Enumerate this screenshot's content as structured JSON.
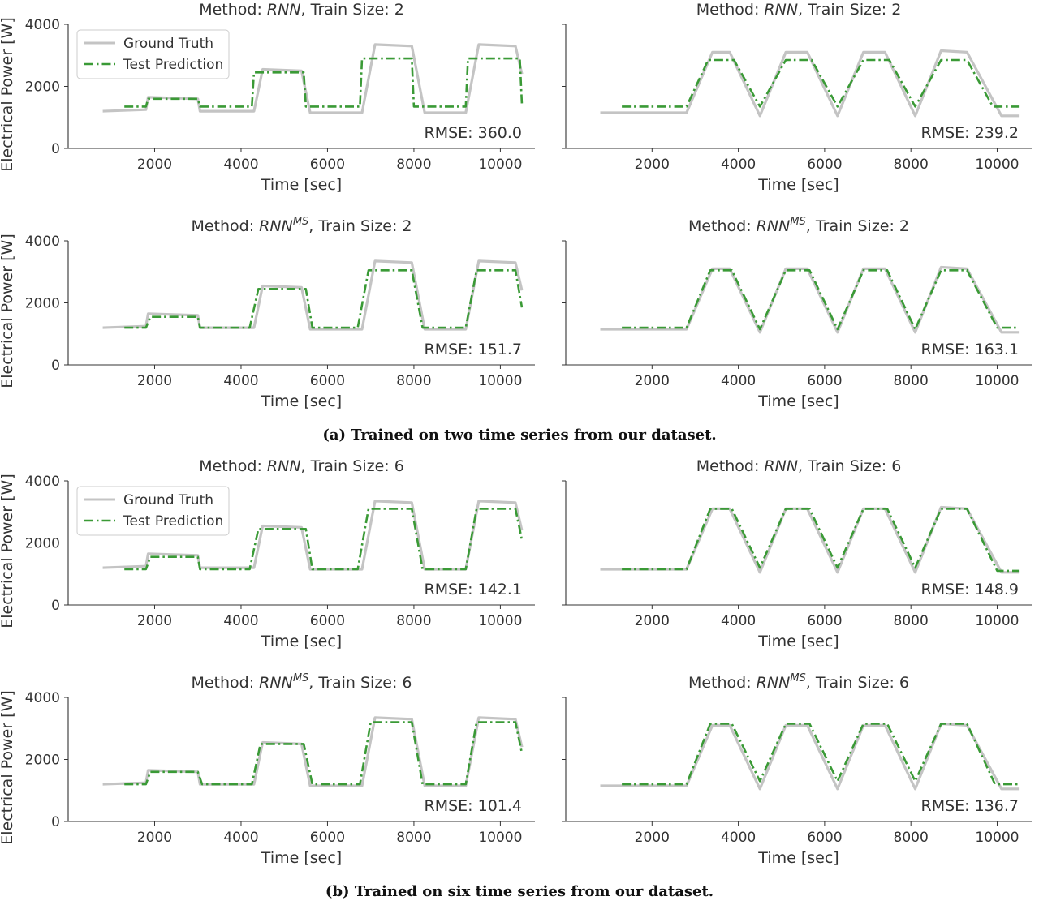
{
  "captions": {
    "a": "(a) Trained on two time series from our dataset.",
    "b": "(b) Trained on six time series from our dataset."
  },
  "colors": {
    "ground_truth": "#c4c4c4",
    "prediction": "#3a9a36",
    "axis": "#333333"
  },
  "axes_common": {
    "xlabel": "Time [sec]",
    "ylabel": "Electrical Power [W]",
    "xticks": [
      2000,
      4000,
      6000,
      8000,
      10000
    ],
    "yticks": [
      0,
      2000,
      4000
    ],
    "xlim": [
      0,
      10800
    ],
    "ylim": [
      0,
      4000
    ]
  },
  "legend": {
    "ground_truth": "Ground Truth",
    "prediction": "Test Prediction",
    "location": "upper-left"
  },
  "chart_data": [
    {
      "type": "line",
      "panel": "a-top-left",
      "title_prefix": "Method: ",
      "method": "RNN",
      "superscript": "",
      "title_suffix": ", Train Size: 2",
      "rmse": "RMSE: 360.0",
      "show_legend": true,
      "show_ylabels": true,
      "series": [
        {
          "name": "Ground Truth",
          "x": [
            800,
            1800,
            1850,
            3000,
            3050,
            4300,
            4500,
            5400,
            5600,
            6800,
            7100,
            7950,
            8250,
            9200,
            9500,
            10350,
            10500
          ],
          "y": [
            1200,
            1250,
            1650,
            1600,
            1200,
            1200,
            2550,
            2500,
            1150,
            1150,
            3350,
            3300,
            1150,
            1150,
            3350,
            3300,
            2400
          ]
        },
        {
          "name": "Test Prediction",
          "x": [
            1300,
            1800,
            1850,
            3000,
            3050,
            4250,
            4300,
            5450,
            5500,
            6750,
            6800,
            7950,
            8000,
            9200,
            9250,
            10450,
            10500
          ],
          "y": [
            1350,
            1350,
            1600,
            1600,
            1350,
            1350,
            2450,
            2450,
            1350,
            1350,
            2900,
            2900,
            1350,
            1350,
            2900,
            2900,
            1400
          ]
        }
      ]
    },
    {
      "type": "line",
      "panel": "a-top-right",
      "title_prefix": "Method: ",
      "method": "RNN",
      "superscript": "",
      "title_suffix": ", Train Size: 2",
      "rmse": "RMSE: 239.2",
      "show_legend": false,
      "show_ylabels": false,
      "series": [
        {
          "name": "Ground Truth",
          "x": [
            800,
            2800,
            3400,
            3800,
            4500,
            5100,
            5600,
            6300,
            6900,
            7400,
            8100,
            8700,
            9300,
            10100,
            10500
          ],
          "y": [
            1150,
            1150,
            3100,
            3100,
            1050,
            3100,
            3100,
            1050,
            3100,
            3100,
            1050,
            3150,
            3100,
            1050,
            1050
          ]
        },
        {
          "name": "Test Prediction",
          "x": [
            1300,
            2800,
            3300,
            3900,
            4500,
            5100,
            5700,
            6300,
            6900,
            7500,
            8100,
            8700,
            9300,
            9900,
            10500
          ],
          "y": [
            1350,
            1350,
            2850,
            2850,
            1350,
            2850,
            2850,
            1350,
            2850,
            2850,
            1350,
            2850,
            2850,
            1350,
            1350
          ]
        }
      ]
    },
    {
      "type": "line",
      "panel": "a-bottom-left",
      "title_prefix": "Method: ",
      "method": "RNN",
      "superscript": "MS",
      "title_suffix": ", Train Size: 2",
      "rmse": "RMSE: 151.7",
      "show_legend": false,
      "show_ylabels": true,
      "series": [
        {
          "name": "Ground Truth",
          "x": [
            800,
            1800,
            1850,
            3000,
            3050,
            4300,
            4500,
            5400,
            5600,
            6800,
            7100,
            7950,
            8250,
            9200,
            9500,
            10350,
            10500
          ],
          "y": [
            1200,
            1250,
            1650,
            1600,
            1200,
            1200,
            2550,
            2500,
            1150,
            1150,
            3350,
            3300,
            1150,
            1150,
            3350,
            3300,
            2400
          ]
        },
        {
          "name": "Test Prediction",
          "x": [
            1300,
            1800,
            1900,
            3000,
            3050,
            4200,
            4400,
            5500,
            5650,
            6700,
            6950,
            7950,
            8200,
            9200,
            9450,
            10350,
            10500
          ],
          "y": [
            1200,
            1200,
            1550,
            1550,
            1200,
            1200,
            2450,
            2450,
            1200,
            1200,
            3050,
            3050,
            1200,
            1200,
            3050,
            3050,
            1850
          ]
        }
      ]
    },
    {
      "type": "line",
      "panel": "a-bottom-right",
      "title_prefix": "Method: ",
      "method": "RNN",
      "superscript": "MS",
      "title_suffix": ", Train Size: 2",
      "rmse": "RMSE: 163.1",
      "show_legend": false,
      "show_ylabels": false,
      "series": [
        {
          "name": "Ground Truth",
          "x": [
            800,
            2800,
            3400,
            3800,
            4500,
            5100,
            5600,
            6300,
            6900,
            7400,
            8100,
            8700,
            9300,
            10100,
            10500
          ],
          "y": [
            1150,
            1150,
            3100,
            3100,
            1050,
            3100,
            3100,
            1050,
            3100,
            3100,
            1050,
            3150,
            3100,
            1050,
            1050
          ]
        },
        {
          "name": "Test Prediction",
          "x": [
            1300,
            2800,
            3350,
            3850,
            4500,
            5100,
            5650,
            6300,
            6900,
            7450,
            8100,
            8700,
            9300,
            10000,
            10500
          ],
          "y": [
            1200,
            1200,
            3050,
            3050,
            1150,
            3050,
            3050,
            1150,
            3050,
            3050,
            1150,
            3050,
            3050,
            1200,
            1200
          ]
        }
      ]
    },
    {
      "type": "line",
      "panel": "b-top-left",
      "title_prefix": "Method: ",
      "method": "RNN",
      "superscript": "",
      "title_suffix": ", Train Size: 6",
      "rmse": "RMSE: 142.1",
      "show_legend": true,
      "show_ylabels": true,
      "series": [
        {
          "name": "Ground Truth",
          "x": [
            800,
            1800,
            1850,
            3000,
            3050,
            4300,
            4500,
            5400,
            5600,
            6800,
            7100,
            7950,
            8250,
            9200,
            9500,
            10350,
            10500
          ],
          "y": [
            1200,
            1250,
            1650,
            1600,
            1200,
            1200,
            2550,
            2500,
            1150,
            1150,
            3350,
            3300,
            1150,
            1150,
            3350,
            3300,
            2400
          ]
        },
        {
          "name": "Test Prediction",
          "x": [
            1300,
            1800,
            1900,
            3000,
            3050,
            4200,
            4400,
            5500,
            5650,
            6700,
            6950,
            7950,
            8200,
            9200,
            9450,
            10350,
            10500
          ],
          "y": [
            1150,
            1150,
            1550,
            1550,
            1150,
            1150,
            2450,
            2450,
            1150,
            1150,
            3100,
            3100,
            1150,
            1150,
            3100,
            3100,
            2100
          ]
        }
      ]
    },
    {
      "type": "line",
      "panel": "b-top-right",
      "title_prefix": "Method: ",
      "method": "RNN",
      "superscript": "",
      "title_suffix": ", Train Size: 6",
      "rmse": "RMSE: 148.9",
      "show_legend": false,
      "show_ylabels": false,
      "series": [
        {
          "name": "Ground Truth",
          "x": [
            800,
            2800,
            3400,
            3800,
            4500,
            5100,
            5600,
            6300,
            6900,
            7400,
            8100,
            8700,
            9300,
            10100,
            10500
          ],
          "y": [
            1150,
            1150,
            3100,
            3100,
            1050,
            3100,
            3100,
            1050,
            3100,
            3100,
            1050,
            3150,
            3100,
            1050,
            1050
          ]
        },
        {
          "name": "Test Prediction",
          "x": [
            1300,
            2800,
            3350,
            3850,
            4500,
            5100,
            5650,
            6300,
            6900,
            7450,
            8100,
            8700,
            9300,
            10000,
            10500
          ],
          "y": [
            1150,
            1150,
            3100,
            3100,
            1200,
            3100,
            3100,
            1200,
            3100,
            3100,
            1200,
            3100,
            3100,
            1100,
            1100
          ]
        }
      ]
    },
    {
      "type": "line",
      "panel": "b-bottom-left",
      "title_prefix": "Method: ",
      "method": "RNN",
      "superscript": "MS",
      "title_suffix": ", Train Size: 6",
      "rmse": "RMSE: 101.4",
      "show_legend": false,
      "show_ylabels": true,
      "series": [
        {
          "name": "Ground Truth",
          "x": [
            800,
            1800,
            1850,
            3000,
            3050,
            4300,
            4500,
            5400,
            5600,
            6800,
            7100,
            7950,
            8250,
            9200,
            9500,
            10350,
            10500
          ],
          "y": [
            1200,
            1250,
            1650,
            1600,
            1200,
            1200,
            2550,
            2500,
            1150,
            1150,
            3350,
            3300,
            1150,
            1150,
            3350,
            3300,
            2400
          ]
        },
        {
          "name": "Test Prediction",
          "x": [
            1300,
            1800,
            1900,
            3000,
            3100,
            4250,
            4450,
            5450,
            5650,
            6750,
            7000,
            7950,
            8200,
            9200,
            9450,
            10350,
            10500
          ],
          "y": [
            1200,
            1200,
            1600,
            1600,
            1200,
            1200,
            2500,
            2500,
            1200,
            1200,
            3200,
            3200,
            1200,
            1200,
            3200,
            3200,
            2200
          ]
        }
      ]
    },
    {
      "type": "line",
      "panel": "b-bottom-right",
      "title_prefix": "Method: ",
      "method": "RNN",
      "superscript": "MS",
      "title_suffix": ", Train Size: 6",
      "rmse": "RMSE: 136.7",
      "show_legend": false,
      "show_ylabels": false,
      "series": [
        {
          "name": "Ground Truth",
          "x": [
            800,
            2800,
            3400,
            3800,
            4500,
            5100,
            5600,
            6300,
            6900,
            7400,
            8100,
            8700,
            9300,
            10100,
            10500
          ],
          "y": [
            1150,
            1150,
            3100,
            3100,
            1050,
            3100,
            3100,
            1050,
            3100,
            3100,
            1050,
            3150,
            3100,
            1050,
            1050
          ]
        },
        {
          "name": "Test Prediction",
          "x": [
            1300,
            2800,
            3350,
            3850,
            4500,
            5100,
            5650,
            6300,
            6900,
            7450,
            8100,
            8700,
            9300,
            9950,
            10500
          ],
          "y": [
            1200,
            1200,
            3150,
            3150,
            1300,
            3150,
            3150,
            1300,
            3150,
            3150,
            1300,
            3150,
            3150,
            1200,
            1200
          ]
        }
      ]
    }
  ]
}
